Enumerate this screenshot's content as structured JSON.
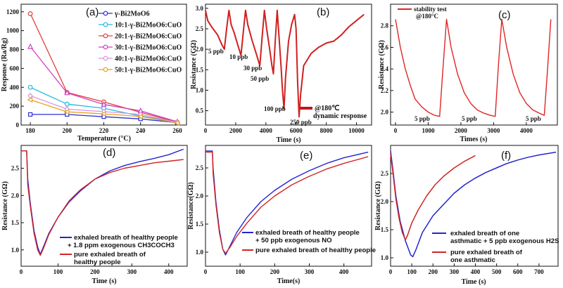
{
  "chart_data": [
    {
      "panel": "(a)",
      "type": "line",
      "xlabel": "Temperature (°C)",
      "ylabel": "Response (Ra/Rg)",
      "xlim": [
        175,
        265
      ],
      "ylim": [
        0,
        1280
      ],
      "xticks": [
        180,
        200,
        220,
        240,
        260
      ],
      "yticks": [
        0,
        200,
        400,
        600,
        800,
        1000,
        1200
      ],
      "x": [
        180,
        200,
        220,
        240,
        260
      ],
      "legend_position": "top-right",
      "series": [
        {
          "name": "γ-Bi2MoO6",
          "color": "#2d2fd6",
          "marker": "square",
          "values": [
            112,
            112,
            88,
            65,
            25
          ]
        },
        {
          "name": "10:1-γ-Bi2MoO6:CuO",
          "color": "#22b8e0",
          "marker": "circle",
          "values": [
            400,
            222,
            178,
            95,
            30
          ]
        },
        {
          "name": "20:1-γ-Bi2MoO6:CuO",
          "color": "#e0403a",
          "marker": "circle",
          "values": [
            1180,
            345,
            245,
            135,
            30
          ]
        },
        {
          "name": "30:1-γ-Bi2MoO6:CuO",
          "color": "#d040c0",
          "marker": "triangle",
          "values": [
            830,
            340,
            218,
            150,
            35
          ]
        },
        {
          "name": "40:1-γ-Bi2MoO6:CuO",
          "color": "#d994e0",
          "marker": "diamond",
          "values": [
            310,
            168,
            142,
            112,
            28
          ]
        },
        {
          "name": "50:1-γ-Bi2MoO6:CuO",
          "color": "#e8a21c",
          "marker": "triangle-left",
          "values": [
            268,
            140,
            118,
            90,
            22
          ]
        }
      ]
    },
    {
      "panel": "(b)",
      "type": "line",
      "xlabel": "Time (s)",
      "ylabel": "Resistance (GΩ)",
      "xlim": [
        0,
        11000
      ],
      "ylim": [
        0.15,
        3.1
      ],
      "xticks": [
        0,
        2000,
        4000,
        6000,
        8000,
        10000
      ],
      "yticks": [
        0.5,
        1.0,
        1.5,
        2.0,
        2.5,
        3.0
      ],
      "legend": "@180℃ dynamic response",
      "annotations": [
        "5 ppb",
        "10 ppb",
        "30 ppb",
        "50 ppb",
        "100 ppb",
        "250 ppb"
      ],
      "series": [
        {
          "color": "#d02020",
          "points": [
            [
              0,
              2.95
            ],
            [
              150,
              2.7
            ],
            [
              400,
              2.55
            ],
            [
              800,
              2.35
            ],
            [
              1100,
              2.1
            ],
            [
              1250,
              2.0
            ],
            [
              1400,
              2.5
            ],
            [
              1550,
              2.95
            ],
            [
              1700,
              2.6
            ],
            [
              1900,
              2.4
            ],
            [
              2100,
              2.15
            ],
            [
              2350,
              1.85
            ],
            [
              2500,
              2.4
            ],
            [
              2650,
              2.95
            ],
            [
              2800,
              2.6
            ],
            [
              3100,
              2.2
            ],
            [
              3400,
              1.85
            ],
            [
              3600,
              1.6
            ],
            [
              3750,
              2.3
            ],
            [
              3900,
              2.95
            ],
            [
              4050,
              2.5
            ],
            [
              4250,
              2.0
            ],
            [
              4400,
              1.6
            ],
            [
              4500,
              1.4
            ],
            [
              4620,
              2.2
            ],
            [
              4750,
              2.95
            ],
            [
              4850,
              2.4
            ],
            [
              5000,
              1.6
            ],
            [
              5100,
              1.0
            ],
            [
              5200,
              0.55
            ],
            [
              5300,
              1.3
            ],
            [
              5500,
              2.2
            ],
            [
              5700,
              2.6
            ],
            [
              5900,
              2.85
            ],
            [
              6000,
              2.5
            ],
            [
              6100,
              1.2
            ],
            [
              6200,
              0.35
            ],
            [
              6300,
              0.9
            ],
            [
              6500,
              1.6
            ],
            [
              7000,
              1.9
            ],
            [
              7500,
              2.05
            ],
            [
              8000,
              2.15
            ],
            [
              8500,
              2.2
            ],
            [
              9000,
              2.35
            ],
            [
              9500,
              2.55
            ],
            [
              10000,
              2.7
            ],
            [
              10500,
              2.85
            ]
          ]
        }
      ]
    },
    {
      "panel": "(c)",
      "type": "line",
      "xlabel": "Times (s)",
      "ylabel": "Resistance (GΩ)",
      "xlim": [
        -150,
        4950
      ],
      "ylim": [
        1.88,
        3.0
      ],
      "xticks": [
        0,
        1000,
        2000,
        3000,
        4000
      ],
      "yticks": [
        2.0,
        2.2,
        2.4,
        2.6,
        2.8
      ],
      "legend": "stability test @180°C",
      "annotations": [
        "5 ppb",
        "5 ppb",
        "5 ppb"
      ],
      "series": [
        {
          "color": "#e02525",
          "points": [
            [
              0,
              2.86
            ],
            [
              150,
              2.6
            ],
            [
              300,
              2.4
            ],
            [
              450,
              2.25
            ],
            [
              600,
              2.12
            ],
            [
              800,
              2.05
            ],
            [
              1000,
              2.0
            ],
            [
              1200,
              1.97
            ],
            [
              1350,
              1.96
            ],
            [
              1450,
              2.4
            ],
            [
              1560,
              2.86
            ],
            [
              1700,
              2.6
            ],
            [
              1900,
              2.35
            ],
            [
              2100,
              2.18
            ],
            [
              2300,
              2.08
            ],
            [
              2500,
              2.02
            ],
            [
              2700,
              1.99
            ],
            [
              2900,
              1.97
            ],
            [
              3050,
              1.96
            ],
            [
              3150,
              2.45
            ],
            [
              3250,
              2.86
            ],
            [
              3400,
              2.6
            ],
            [
              3600,
              2.35
            ],
            [
              3800,
              2.18
            ],
            [
              4000,
              2.08
            ],
            [
              4200,
              2.02
            ],
            [
              4400,
              1.99
            ],
            [
              4550,
              1.97
            ],
            [
              4650,
              2.4
            ],
            [
              4750,
              2.86
            ]
          ]
        }
      ]
    },
    {
      "panel": "(d)",
      "type": "line",
      "xlabel": "Time (s)",
      "ylabel": "Resistance (GΩ)",
      "xlim": [
        0,
        450
      ],
      "ylim": [
        0.7,
        2.92
      ],
      "xticks": [
        0,
        100,
        200,
        300,
        400
      ],
      "yticks": [
        1.0,
        1.5,
        2.0,
        2.5
      ],
      "legend_position": "bottom-right",
      "series": [
        {
          "name": "exhaled breath of healthy people + 1.8 ppm exogenous CH3COCH3",
          "color": "#2424d0",
          "points": [
            [
              0,
              2.82
            ],
            [
              15,
              2.82
            ],
            [
              18,
              2.3
            ],
            [
              25,
              1.85
            ],
            [
              35,
              1.35
            ],
            [
              45,
              1.05
            ],
            [
              52,
              0.92
            ],
            [
              60,
              1.05
            ],
            [
              75,
              1.3
            ],
            [
              100,
              1.6
            ],
            [
              130,
              1.88
            ],
            [
              160,
              2.08
            ],
            [
              200,
              2.3
            ],
            [
              240,
              2.45
            ],
            [
              280,
              2.55
            ],
            [
              320,
              2.62
            ],
            [
              360,
              2.68
            ],
            [
              400,
              2.75
            ],
            [
              440,
              2.85
            ]
          ]
        },
        {
          "name": "pure exhaled breath of healthy people",
          "color": "#d02525",
          "points": [
            [
              0,
              2.82
            ],
            [
              15,
              2.82
            ],
            [
              18,
              2.2
            ],
            [
              25,
              1.8
            ],
            [
              35,
              1.3
            ],
            [
              45,
              1.0
            ],
            [
              52,
              0.9
            ],
            [
              60,
              1.02
            ],
            [
              75,
              1.28
            ],
            [
              100,
              1.6
            ],
            [
              130,
              1.9
            ],
            [
              160,
              2.1
            ],
            [
              200,
              2.3
            ],
            [
              240,
              2.42
            ],
            [
              280,
              2.5
            ],
            [
              320,
              2.55
            ],
            [
              360,
              2.6
            ],
            [
              400,
              2.63
            ],
            [
              440,
              2.66
            ]
          ]
        }
      ]
    },
    {
      "panel": "(e)",
      "type": "line",
      "xlabel": "Time(s)",
      "ylabel": "Resistance(GΩ)",
      "xlim": [
        0,
        480
      ],
      "ylim": [
        0.75,
        2.9
      ],
      "xticks": [
        0,
        100,
        200,
        300,
        400
      ],
      "yticks": [
        1.0,
        1.5,
        2.0,
        2.5
      ],
      "legend_position": "bottom-right",
      "series": [
        {
          "name": "exhaled breath of healthy people + 50 ppb exogenous NO",
          "color": "#2424d0",
          "points": [
            [
              0,
              2.8
            ],
            [
              20,
              2.8
            ],
            [
              22,
              2.5
            ],
            [
              30,
              1.9
            ],
            [
              40,
              1.4
            ],
            [
              50,
              1.05
            ],
            [
              58,
              0.95
            ],
            [
              70,
              1.1
            ],
            [
              90,
              1.35
            ],
            [
              120,
              1.62
            ],
            [
              160,
              1.9
            ],
            [
              200,
              2.1
            ],
            [
              250,
              2.3
            ],
            [
              300,
              2.45
            ],
            [
              350,
              2.58
            ],
            [
              400,
              2.68
            ],
            [
              470,
              2.78
            ]
          ]
        },
        {
          "name": "pure exhaled breath of healthy people",
          "color": "#d02525",
          "points": [
            [
              0,
              2.78
            ],
            [
              20,
              2.78
            ],
            [
              22,
              2.4
            ],
            [
              30,
              1.85
            ],
            [
              40,
              1.35
            ],
            [
              50,
              1.05
            ],
            [
              58,
              0.98
            ],
            [
              70,
              1.08
            ],
            [
              90,
              1.28
            ],
            [
              120,
              1.52
            ],
            [
              160,
              1.8
            ],
            [
              200,
              2.0
            ],
            [
              250,
              2.2
            ],
            [
              300,
              2.35
            ],
            [
              350,
              2.48
            ],
            [
              400,
              2.58
            ],
            [
              470,
              2.7
            ]
          ]
        }
      ]
    },
    {
      "panel": "(f)",
      "type": "line",
      "xlabel": "Time (s)",
      "ylabel": "Resistance (GΩ)",
      "xlim": [
        0,
        790
      ],
      "ylim": [
        0.85,
        3.0
      ],
      "xticks": [
        0,
        100,
        200,
        300,
        400,
        500,
        600,
        700
      ],
      "yticks": [
        1.0,
        1.5,
        2.0,
        2.5
      ],
      "legend_position": "bottom-right",
      "series": [
        {
          "name": "exhaled breath of one asthmatic + 5 ppb exogenous H2S",
          "color": "#2424d0",
          "points": [
            [
              0,
              2.9
            ],
            [
              10,
              2.6
            ],
            [
              25,
              2.1
            ],
            [
              45,
              1.65
            ],
            [
              70,
              1.3
            ],
            [
              95,
              1.05
            ],
            [
              105,
              1.02
            ],
            [
              120,
              1.15
            ],
            [
              150,
              1.45
            ],
            [
              200,
              1.75
            ],
            [
              250,
              1.95
            ],
            [
              300,
              2.15
            ],
            [
              350,
              2.3
            ],
            [
              400,
              2.42
            ],
            [
              450,
              2.52
            ],
            [
              500,
              2.6
            ],
            [
              550,
              2.68
            ],
            [
              600,
              2.74
            ],
            [
              650,
              2.79
            ],
            [
              700,
              2.83
            ],
            [
              780,
              2.88
            ]
          ]
        },
        {
          "name": "pure exhaled breath of one asthmatic",
          "color": "#d02525",
          "points": [
            [
              0,
              2.85
            ],
            [
              10,
              2.55
            ],
            [
              25,
              2.05
            ],
            [
              40,
              1.7
            ],
            [
              55,
              1.45
            ],
            [
              70,
              1.32
            ],
            [
              80,
              1.4
            ],
            [
              100,
              1.62
            ],
            [
              130,
              1.85
            ],
            [
              170,
              2.1
            ],
            [
              210,
              2.3
            ],
            [
              250,
              2.45
            ],
            [
              300,
              2.6
            ],
            [
              350,
              2.72
            ],
            [
              400,
              2.82
            ]
          ]
        }
      ]
    }
  ],
  "labels": {
    "a_panel": "(a)",
    "b_panel": "(b)",
    "c_panel": "(c)",
    "d_panel": "(d)",
    "e_panel": "(e)",
    "f_panel": "(f)",
    "a_xlabel": "Temperature (°C)",
    "a_ylabel": "Response (Ra/Rg)",
    "b_xlabel": "Time (s)",
    "b_ylabel": "Resistance (GΩ)",
    "b_legend1": "@180℃",
    "b_legend2": "dynamic response",
    "c_xlabel": "Times (s)",
    "c_ylabel": "Resistance (GΩ)",
    "c_legend1": "stability test",
    "c_legend2": "@180°C",
    "d_xlabel": "Time (s)",
    "d_ylabel": "Resistance (GΩ)",
    "d_leg1a": "exhaled breath of healthy people",
    "d_leg1b": "+ 1.8 ppm exogenous CH3COCH3",
    "d_leg2a": "pure exhaled breath of",
    "d_leg2b": "healthy people",
    "e_xlabel": "Time(s)",
    "e_ylabel": "Resistance(GΩ)",
    "e_leg1a": "exhaled breath of healthy people",
    "e_leg1b": "+ 50 ppb exogenous NO",
    "e_leg2": "pure exhaled breath of healthy people",
    "f_xlabel": "Time (s)",
    "f_ylabel": "Resistance (GΩ)",
    "f_leg1a": "exhaled breath of one",
    "f_leg1b": "asthmatic + 5 ppb exogenous H2S",
    "f_leg2a": "pure exhaled breath of",
    "f_leg2b": "one asthmatic",
    "b_ann": [
      "5 ppb",
      "10 ppb",
      "30 ppb",
      "50 ppb",
      "100 ppb",
      "250 ppb"
    ],
    "c_ann": [
      "5 ppb",
      "5 ppb",
      "5 ppb"
    ]
  }
}
